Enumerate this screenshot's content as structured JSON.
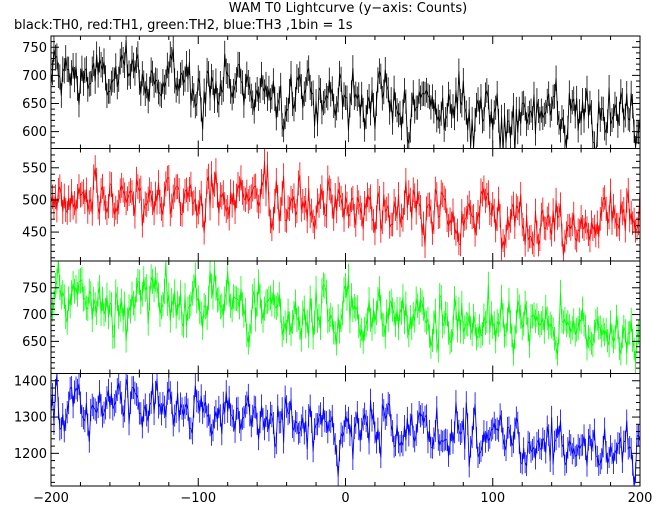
{
  "chart_data": {
    "type": "line",
    "title": "WAM T0 Lightcurve (y−axis: Counts)",
    "subtitle": "black:TH0, red:TH1, green:TH2, blue:TH3 ,1bin = 1s",
    "xlim": [
      -200,
      200
    ],
    "x_ticks": [
      -200,
      -100,
      0,
      100,
      200
    ],
    "grid": false,
    "panels": [
      {
        "name": "TH0",
        "color": "#000000",
        "ylim": [
          570,
          770
        ],
        "y_ticks": [
          600,
          650,
          700,
          750
        ],
        "trend": [
          [
            -200,
            700
          ],
          [
            -100,
            690
          ],
          [
            0,
            662
          ],
          [
            100,
            635
          ],
          [
            200,
            610
          ]
        ],
        "noise_sigma": 26
      },
      {
        "name": "TH1",
        "color": "#ff0000",
        "ylim": [
          405,
          580
        ],
        "y_ticks": [
          450,
          500,
          550
        ],
        "trend": [
          [
            -200,
            505
          ],
          [
            -100,
            503
          ],
          [
            0,
            488
          ],
          [
            100,
            475
          ],
          [
            200,
            465
          ]
        ],
        "noise_sigma": 22
      },
      {
        "name": "TH2",
        "color": "#00ff00",
        "ylim": [
          590,
          800
        ],
        "y_ticks": [
          650,
          700,
          750
        ],
        "trend": [
          [
            -200,
            725
          ],
          [
            -100,
            715
          ],
          [
            0,
            695
          ],
          [
            100,
            680
          ],
          [
            200,
            660
          ]
        ],
        "noise_sigma": 26
      },
      {
        "name": "TH3",
        "color": "#0000ff",
        "ylim": [
          1110,
          1420
        ],
        "y_ticks": [
          1200,
          1300,
          1400
        ],
        "trend": [
          [
            -200,
            1320
          ],
          [
            -150,
            1340
          ],
          [
            -100,
            1305
          ],
          [
            0,
            1275
          ],
          [
            100,
            1245
          ],
          [
            200,
            1210
          ]
        ],
        "noise_sigma": 38
      }
    ]
  }
}
